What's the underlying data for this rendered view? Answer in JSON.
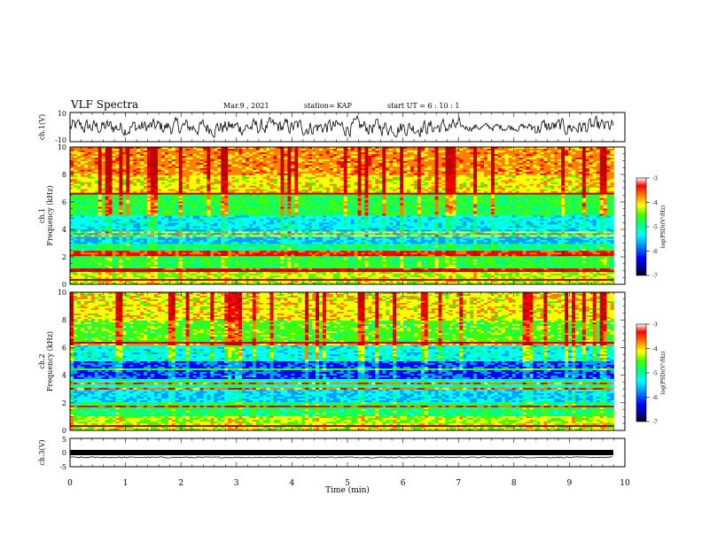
{
  "header": {
    "title": "VLF Spectra",
    "date": "Mar.9  , 2021",
    "station": "station= KAP",
    "start": "start  UT =   6  : 10 : 1"
  },
  "chart_data": [
    {
      "type": "line",
      "name": "waveform-ch1",
      "ylabel": "ch.1(V)",
      "ylim": [
        -10,
        10
      ],
      "yticklabels": [
        "10",
        "-10"
      ],
      "xlim": [
        0,
        10
      ]
    },
    {
      "type": "heatmap",
      "name": "spectrogram-ch1",
      "ylabel": "ch.1\nFrequency (kHz)",
      "ylabel_lines": [
        "ch.1",
        "Frequency  (kHz)"
      ],
      "ylim": [
        0,
        10
      ],
      "yticks": [
        0,
        2,
        4,
        6,
        8,
        10
      ],
      "yticklabels": [
        "0",
        "2",
        "4",
        "6",
        "8",
        "10"
      ],
      "colorbar": {
        "label": "log(PSD)(V²/Hz)",
        "range": [
          -7,
          -3
        ],
        "ticks": [
          -7,
          -6,
          -5,
          -4,
          -3
        ],
        "ticklabels": [
          "-7",
          "-6",
          "-5",
          "-4",
          "-3"
        ]
      }
    },
    {
      "type": "heatmap",
      "name": "spectrogram-ch2",
      "ylabel": "ch.2\nFrequency (kHz)",
      "ylabel_lines": [
        "ch.2",
        "Frequency  (kHz)"
      ],
      "ylim": [
        0,
        10
      ],
      "yticks": [
        0,
        2,
        4,
        6,
        8,
        10
      ],
      "yticklabels": [
        "0",
        "2",
        "4",
        "6",
        "8",
        "10"
      ],
      "colorbar": {
        "label": "log(PSD)(V²/Hz)",
        "range": [
          -7,
          -3
        ],
        "ticks": [
          -7,
          -6,
          -5,
          -4,
          -3
        ],
        "ticklabels": [
          "-7",
          "-6",
          "-5",
          "-4",
          "-3"
        ]
      }
    },
    {
      "type": "line",
      "name": "waveform-ch3",
      "ylabel": "ch.3(V)",
      "ylim": [
        -5,
        5
      ],
      "yticklabels": [
        "5",
        "0",
        "-5"
      ],
      "xlim": [
        0,
        10
      ],
      "xlabel": "Time  (min)",
      "xticks": [
        0,
        1,
        2,
        3,
        4,
        5,
        6,
        7,
        8,
        9,
        10
      ],
      "xticklabels": [
        "0",
        "1",
        "2",
        "3",
        "4",
        "5",
        "6",
        "7",
        "8",
        "9",
        "10"
      ],
      "data_extent_x": 9.8
    }
  ],
  "colors": {
    "colormap": [
      "#000080",
      "#0000ff",
      "#00a0ff",
      "#00ffff",
      "#00ff80",
      "#40ff00",
      "#ffff00",
      "#ff8000",
      "#ff0000",
      "#c00000"
    ]
  }
}
